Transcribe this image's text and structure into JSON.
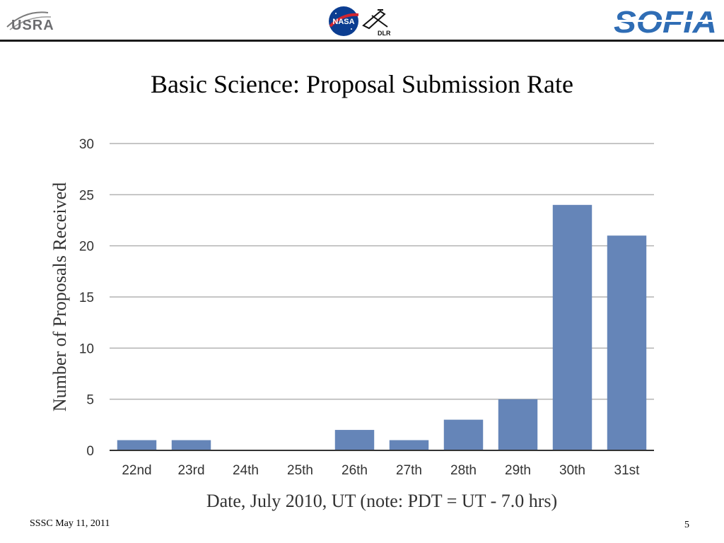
{
  "header": {
    "left_logo": "USRA",
    "center_logos": [
      "NASA",
      "DLR"
    ],
    "right_logo": "SOFIA"
  },
  "slide": {
    "title": "Basic Science: Proposal Submission Rate",
    "footer_left": "SSSC May 11, 2011",
    "page_number": "5"
  },
  "colors": {
    "bar": "#6585b8",
    "grid": "#b3b3b3",
    "text": "#333333"
  },
  "chart_data": {
    "type": "bar",
    "categories": [
      "22nd",
      "23rd",
      "24th",
      "25th",
      "26th",
      "27th",
      "28th",
      "29th",
      "30th",
      "31st"
    ],
    "values": [
      1,
      1,
      0,
      0,
      2,
      1,
      3,
      5,
      24,
      21
    ],
    "xlabel": "Date, July 2010, UT (note: PDT = UT - 7.0 hrs)",
    "ylabel": "Number of Proposals Received",
    "ylim": [
      0,
      30
    ],
    "yticks": [
      0,
      5,
      10,
      15,
      20,
      25,
      30
    ],
    "grid": true
  }
}
